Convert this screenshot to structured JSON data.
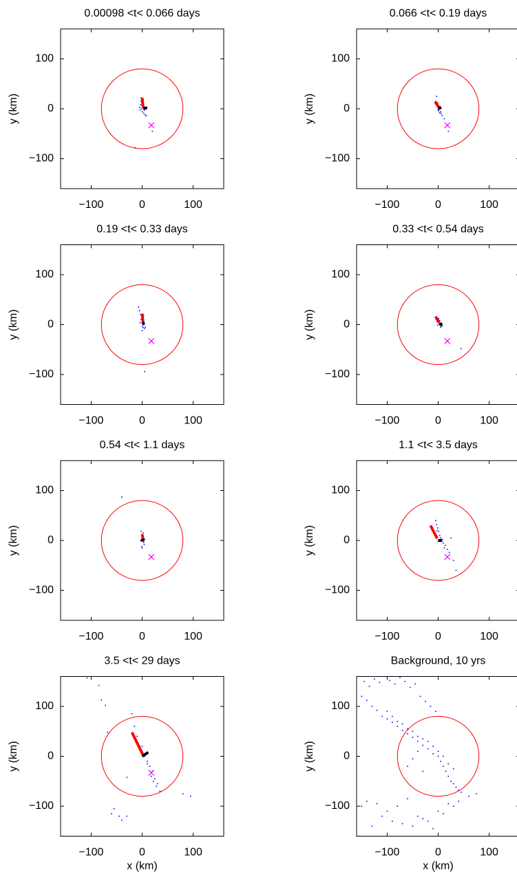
{
  "chart_data": [
    {
      "type": "scatter",
      "title": "0.00098 <t< 0.066 days",
      "ylabel": "y (km)",
      "xlim": [
        -160,
        160
      ],
      "ylim": [
        -160,
        160
      ],
      "xticks": [
        {
          "value": -100,
          "label": "−100"
        },
        0,
        100
      ],
      "yticks": [
        {
          "value": -100,
          "label": "−100"
        },
        0,
        100
      ],
      "color": "#0000ff",
      "x": [
        -2,
        0,
        1,
        -3,
        2,
        3,
        -1,
        4,
        0,
        -4,
        1,
        5,
        -2,
        3,
        6,
        2,
        20,
        -14,
        8,
        -5
      ],
      "y": [
        22,
        18,
        12,
        8,
        5,
        2,
        0,
        -3,
        -6,
        -2,
        10,
        -1,
        15,
        -9,
        -12,
        4,
        -45,
        -78,
        -14,
        3
      ],
      "circle": {
        "x": 0,
        "y": 0,
        "r": 80,
        "color": "#ff0000"
      },
      "marker": {
        "x": 18,
        "y": -33,
        "color": "#ff00ff"
      },
      "segments": [
        {
          "x": [
            0,
            2
          ],
          "y": [
            22,
            2
          ],
          "color": "#ff0000"
        },
        {
          "x": [
            2,
            10
          ],
          "y": [
            1,
            2
          ],
          "color": "#000000"
        }
      ]
    },
    {
      "type": "scatter",
      "title": "0.066 <t< 0.19 days",
      "ylabel": "y (km)",
      "xlim": [
        -160,
        160
      ],
      "ylim": [
        -160,
        160
      ],
      "xticks": [
        {
          "value": -100,
          "label": "−100"
        },
        0,
        100
      ],
      "yticks": [
        {
          "value": -100,
          "label": "−100"
        },
        0,
        100
      ],
      "color": "#0000ff",
      "x": [
        -3,
        -1,
        0,
        2,
        4,
        1,
        -2,
        3,
        6,
        8,
        12,
        20,
        -5,
        0,
        5
      ],
      "y": [
        25,
        12,
        6,
        2,
        0,
        -4,
        8,
        -8,
        -10,
        -14,
        -20,
        -45,
        15,
        -2,
        -6
      ],
      "circle": {
        "x": 0,
        "y": 0,
        "r": 80,
        "color": "#ff0000"
      },
      "marker": {
        "x": 18,
        "y": -33,
        "color": "#ff00ff"
      },
      "segments": [
        {
          "x": [
            -6,
            2
          ],
          "y": [
            14,
            2
          ],
          "color": "#ff0000"
        },
        {
          "x": [
            0,
            6
          ],
          "y": [
            0,
            3
          ],
          "color": "#000000"
        }
      ]
    },
    {
      "type": "scatter",
      "title": "0.19 <t< 0.33 days",
      "ylabel": "y (km)",
      "xlim": [
        -160,
        160
      ],
      "ylim": [
        -160,
        160
      ],
      "xticks": [
        {
          "value": -100,
          "label": "−100"
        },
        0,
        100
      ],
      "yticks": [
        {
          "value": -100,
          "label": "−100"
        },
        0,
        100
      ],
      "color": "#0000ff",
      "x": [
        -7,
        -5,
        -3,
        -1,
        0,
        2,
        3,
        1,
        -2,
        4,
        5,
        0,
        -4,
        6,
        3,
        5,
        2
      ],
      "y": [
        35,
        28,
        20,
        14,
        8,
        5,
        0,
        -3,
        10,
        2,
        -8,
        -12,
        4,
        -5,
        18,
        -94,
        -6
      ],
      "circle": {
        "x": 0,
        "y": 0,
        "r": 80,
        "color": "#ff0000"
      },
      "marker": {
        "x": 18,
        "y": -33,
        "color": "#ff00ff"
      },
      "segments": [
        {
          "x": [
            0,
            2
          ],
          "y": [
            22,
            2
          ],
          "color": "#ff0000"
        },
        {
          "x": [
            0,
            5
          ],
          "y": [
            2,
            3
          ],
          "color": "#000000"
        }
      ]
    },
    {
      "type": "scatter",
      "title": "0.33 <t< 0.54 days",
      "ylabel": "y (km)",
      "xlim": [
        -160,
        160
      ],
      "ylim": [
        -160,
        160
      ],
      "xticks": [
        {
          "value": -100,
          "label": "−100"
        },
        0,
        100
      ],
      "yticks": [
        {
          "value": -100,
          "label": "−100"
        },
        0,
        100
      ],
      "color": "#0000ff",
      "x": [
        -6,
        -4,
        -2,
        0,
        2,
        4,
        6,
        8,
        -3,
        1,
        5,
        3,
        45,
        -1
      ],
      "y": [
        14,
        10,
        6,
        4,
        2,
        0,
        -3,
        -2,
        16,
        12,
        -5,
        8,
        -48,
        -1
      ],
      "circle": {
        "x": 0,
        "y": 0,
        "r": 80,
        "color": "#ff0000"
      },
      "marker": {
        "x": 18,
        "y": -33,
        "color": "#ff00ff"
      },
      "segments": [
        {
          "x": [
            -5,
            2
          ],
          "y": [
            16,
            4
          ],
          "color": "#ff0000"
        },
        {
          "x": [
            2,
            8
          ],
          "y": [
            0,
            2
          ],
          "color": "#000000"
        }
      ]
    },
    {
      "type": "scatter",
      "title": "0.54 <t< 1.1 days",
      "ylabel": "y (km)",
      "xlim": [
        -160,
        160
      ],
      "ylim": [
        -160,
        160
      ],
      "xticks": [
        {
          "value": -100,
          "label": "−100"
        },
        0,
        100
      ],
      "yticks": [
        {
          "value": -100,
          "label": "−100"
        },
        0,
        100
      ],
      "color": "#0000ff",
      "x": [
        -40,
        -2,
        0,
        2,
        1,
        -3,
        3,
        4,
        -1,
        2,
        5,
        0
      ],
      "y": [
        87,
        18,
        12,
        8,
        4,
        0,
        -4,
        -8,
        -12,
        15,
        2,
        -15
      ],
      "circle": {
        "x": 0,
        "y": 0,
        "r": 80,
        "color": "#ff0000"
      },
      "marker": {
        "x": 18,
        "y": -33,
        "color": "#ff00ff"
      },
      "segments": [
        {
          "x": [
            0,
            2
          ],
          "y": [
            12,
            2
          ],
          "color": "#ff0000"
        },
        {
          "x": [
            -2,
            4
          ],
          "y": [
            0,
            1
          ],
          "color": "#000000"
        }
      ]
    },
    {
      "type": "scatter",
      "title": "1.1 <t< 3.5 days",
      "ylabel": "y (km)",
      "xlim": [
        -160,
        160
      ],
      "ylim": [
        -160,
        160
      ],
      "xticks": [
        {
          "value": -100,
          "label": "−100"
        },
        0,
        100
      ],
      "yticks": [
        {
          "value": -100,
          "label": "−100"
        },
        0,
        100
      ],
      "color": "#0000ff",
      "x": [
        -5,
        -3,
        -1,
        1,
        3,
        5,
        8,
        10,
        14,
        18,
        22,
        30,
        35,
        25,
        -2,
        0,
        4,
        12
      ],
      "y": [
        40,
        32,
        25,
        18,
        10,
        5,
        2,
        -5,
        -10,
        -18,
        -24,
        -40,
        -60,
        5,
        20,
        -2,
        0,
        -15
      ],
      "circle": {
        "x": 0,
        "y": 0,
        "r": 80,
        "color": "#ff0000"
      },
      "marker": {
        "x": 18,
        "y": -33,
        "color": "#ff00ff"
      },
      "segments": [
        {
          "x": [
            -15,
            -2
          ],
          "y": [
            30,
            4
          ],
          "color": "#ff0000"
        },
        {
          "x": [
            0,
            8
          ],
          "y": [
            0,
            0
          ],
          "color": "#000000"
        }
      ]
    },
    {
      "type": "scatter",
      "title": "3.5 <t< 29 days",
      "ylabel": "y (km)",
      "xlabel": "x (km)",
      "xlim": [
        -160,
        160
      ],
      "ylim": [
        -160,
        160
      ],
      "xticks": [
        {
          "value": -100,
          "label": "−100"
        },
        0,
        100
      ],
      "yticks": [
        {
          "value": -100,
          "label": "−100"
        },
        0,
        100
      ],
      "color": "#0000ff",
      "x": [
        -108,
        -85,
        -80,
        -72,
        -68,
        -60,
        -45,
        -30,
        -20,
        -10,
        0,
        5,
        10,
        15,
        20,
        25,
        30,
        35,
        -30,
        -55,
        -40,
        95,
        80,
        -15,
        18,
        22,
        28,
        10
      ],
      "y": [
        157,
        142,
        113,
        102,
        48,
        -115,
        -120,
        -120,
        85,
        40,
        20,
        0,
        -10,
        -20,
        -30,
        -45,
        -55,
        -70,
        -42,
        -105,
        -128,
        -80,
        -75,
        60,
        -40,
        -50,
        -60,
        -15
      ],
      "circle": {
        "x": 0,
        "y": 0,
        "r": 80,
        "color": "#ff0000"
      },
      "marker": {
        "x": 18,
        "y": -33,
        "color": "#ff00ff"
      },
      "segments": [
        {
          "x": [
            -20,
            2
          ],
          "y": [
            48,
            2
          ],
          "color": "#ff0000"
        },
        {
          "x": [
            0,
            12
          ],
          "y": [
            0,
            8
          ],
          "color": "#000000"
        }
      ]
    },
    {
      "type": "scatter",
      "title": "Background, 10 yrs",
      "ylabel": "y (km)",
      "xlabel": "x (km)",
      "xlim": [
        -160,
        160
      ],
      "ylim": [
        -160,
        160
      ],
      "xticks": [
        {
          "value": -100,
          "label": "−100"
        },
        0,
        100
      ],
      "yticks": [
        {
          "value": -100,
          "label": "−100"
        },
        0,
        100
      ],
      "color": "#0000ff",
      "x": [
        -150,
        -140,
        -130,
        -120,
        -110,
        -100,
        -90,
        -80,
        -70,
        -60,
        -50,
        -40,
        -30,
        -20,
        -10,
        0,
        5,
        10,
        15,
        20,
        25,
        30,
        35,
        40,
        45,
        -145,
        -135,
        -125,
        -115,
        -105,
        -95,
        -85,
        -75,
        -65,
        -55,
        -45,
        -35,
        -25,
        -15,
        -5,
        -100,
        -90,
        -80,
        -70,
        -60,
        -50,
        -40,
        -30,
        -20,
        -10,
        0,
        10,
        20,
        30,
        -150,
        -140,
        -120,
        -100,
        -80,
        -60,
        -40,
        -20,
        0,
        20,
        40,
        60,
        75,
        -130,
        -110,
        -90,
        -70,
        -50,
        -30,
        -10,
        10,
        30,
        -60,
        -50,
        -40,
        -30
      ],
      "y": [
        120,
        112,
        100,
        92,
        80,
        75,
        68,
        60,
        52,
        45,
        38,
        30,
        22,
        15,
        5,
        0,
        -10,
        -20,
        -30,
        -40,
        -50,
        -55,
        -62,
        -68,
        -72,
        150,
        140,
        155,
        148,
        160,
        152,
        145,
        158,
        150,
        138,
        145,
        120,
        110,
        100,
        90,
        90,
        80,
        70,
        65,
        55,
        50,
        40,
        35,
        30,
        20,
        10,
        0,
        -15,
        -25,
        -100,
        -90,
        -95,
        -110,
        -100,
        -85,
        -120,
        -130,
        -110,
        -95,
        -90,
        -80,
        -75,
        -140,
        -120,
        -130,
        -135,
        -140,
        -125,
        -145,
        -115,
        -100,
        -20,
        -5,
        10,
        -30
      ],
      "circle": {
        "x": 0,
        "y": 0,
        "r": 80,
        "color": "#ff0000"
      }
    }
  ]
}
